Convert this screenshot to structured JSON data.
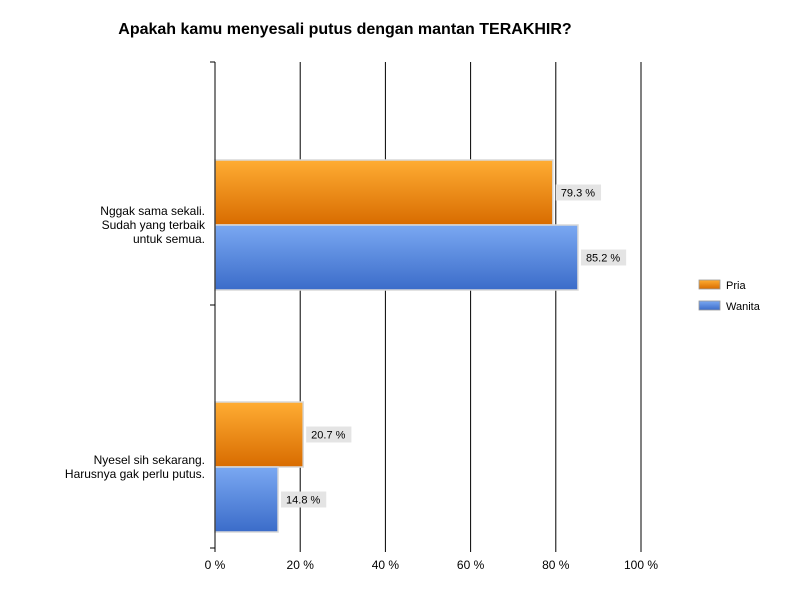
{
  "chart_data": {
    "type": "bar",
    "orientation": "horizontal",
    "title": "Apakah kamu menyesali putus dengan mantan TERAKHIR?",
    "categories": [
      [
        "Nggak sama sekali.",
        "Sudah yang terbaik",
        "untuk semua."
      ],
      [
        "Nyesel sih sekarang.",
        "Harusnya gak perlu putus."
      ]
    ],
    "series": [
      {
        "name": "Pria",
        "values": [
          79.3,
          20.7
        ],
        "labels": [
          "79.3 %",
          "20.7 %"
        ],
        "color": "#f08c00",
        "color_light": "#ffad33",
        "color_dark": "#d86c00"
      },
      {
        "name": "Wanita",
        "values": [
          85.2,
          14.8
        ],
        "labels": [
          "85.2 %",
          "14.8 %"
        ],
        "color": "#4f86e0",
        "color_light": "#7aa8f2",
        "color_dark": "#3b6cc9"
      }
    ],
    "xlim": [
      0,
      100
    ],
    "xticks": [
      0,
      20,
      40,
      60,
      80,
      100
    ],
    "xtick_labels": [
      "0 %",
      "20 %",
      "40 %",
      "60 %",
      "80 %",
      "100 %"
    ],
    "xlabel": "",
    "ylabel": "",
    "grid": "vertical",
    "legend_position": "right"
  }
}
